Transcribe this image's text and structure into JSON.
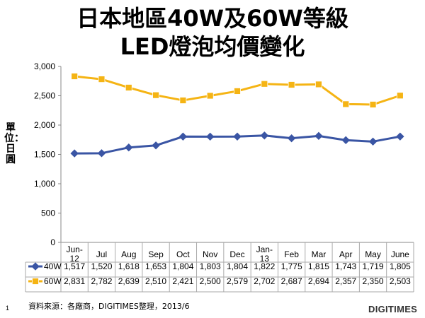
{
  "title_line1": "日本地區40W及60W等級",
  "title_line2": "LED燈泡均價變化",
  "source": "資料來源：各廠商，DIGITIMES整理，2013/6",
  "page_number": "1",
  "logo": "DIGITIMES",
  "chart_data": {
    "type": "line",
    "title": "日本地區40W及60W等級 LED燈泡均價變化",
    "ylabel": "單位：日圓",
    "categories": [
      [
        "Jun-",
        "12"
      ],
      [
        "Jul"
      ],
      [
        "Aug"
      ],
      [
        "Sep"
      ],
      [
        "Oct"
      ],
      [
        "Nov"
      ],
      [
        "Dec"
      ],
      [
        "Jan-",
        "13"
      ],
      [
        "Feb"
      ],
      [
        "Mar"
      ],
      [
        "Apr"
      ],
      [
        "May"
      ],
      [
        "June"
      ]
    ],
    "ylim": [
      0,
      3000
    ],
    "yticks": [
      "0",
      "500",
      "1,000",
      "1,500",
      "2,000",
      "2,500",
      "3,000"
    ],
    "grid": false,
    "legend": "bottom-table",
    "series": [
      {
        "name": "40W",
        "color": "#3a55a4",
        "marker": "diamond",
        "values": [
          1517,
          1520,
          1618,
          1653,
          1804,
          1803,
          1804,
          1822,
          1775,
          1815,
          1743,
          1719,
          1805
        ],
        "labels": [
          "1,517",
          "1,520",
          "1,618",
          "1,653",
          "1,804",
          "1,803",
          "1,804",
          "1,822",
          "1,775",
          "1,815",
          "1,743",
          "1,719",
          "1,805"
        ]
      },
      {
        "name": "60W",
        "color": "#f5b414",
        "marker": "square",
        "values": [
          2831,
          2782,
          2639,
          2510,
          2421,
          2500,
          2579,
          2702,
          2687,
          2694,
          2357,
          2350,
          2503
        ],
        "labels": [
          "2,831",
          "2,782",
          "2,639",
          "2,510",
          "2,421",
          "2,500",
          "2,579",
          "2,702",
          "2,687",
          "2,694",
          "2,357",
          "2,350",
          "2,503"
        ]
      }
    ]
  }
}
